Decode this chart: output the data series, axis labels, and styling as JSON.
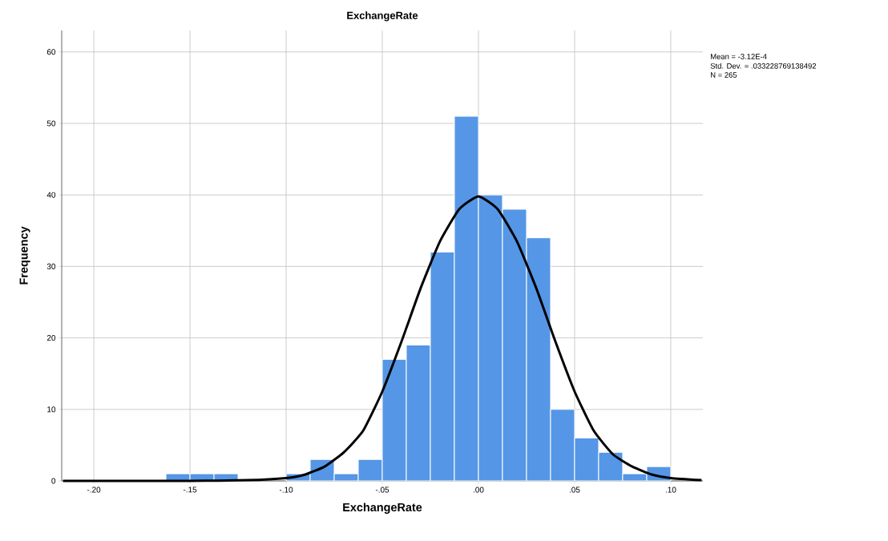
{
  "chart_data": {
    "type": "histogram",
    "title": "ExchangeRate",
    "xlabel": "ExchangeRate",
    "ylabel": "Frequency",
    "bins": [
      -0.1625,
      -0.15,
      -0.1375,
      -0.125,
      -0.1125,
      -0.1,
      -0.0875,
      -0.075,
      -0.0625,
      -0.05,
      -0.0375,
      -0.025,
      -0.0125,
      0,
      0.0125,
      0.025,
      0.0375,
      0.05,
      0.0625,
      0.075,
      0.0875,
      0.1
    ],
    "values": [
      1,
      1,
      1,
      0,
      0,
      1,
      3,
      1,
      3,
      17,
      19,
      32,
      51,
      40,
      38,
      34,
      10,
      6,
      4,
      1,
      2
    ],
    "color": "#5596e6",
    "series": [
      {
        "type": "line",
        "color": "#000000",
        "x": [
          -0.216,
          -0.18,
          -0.15,
          -0.12,
          -0.1,
          -0.09,
          -0.08,
          -0.07,
          -0.06,
          -0.05,
          -0.04,
          -0.03,
          -0.02,
          -0.01,
          0,
          0.01,
          0.02,
          0.03,
          0.04,
          0.05,
          0.06,
          0.07,
          0.08,
          0.09,
          0.1,
          0.116
        ],
        "values": [
          0,
          0,
          0,
          0.1,
          0.4,
          0.9,
          2,
          4,
          7,
          12.5,
          19.5,
          27,
          33.5,
          38,
          39.8,
          38,
          33.5,
          27,
          19.5,
          12.5,
          7,
          3.7,
          2,
          0.9,
          0.4,
          0.1
        ]
      }
    ],
    "xlim": [
      -0.2167,
      0.1167
    ],
    "ylim": [
      0,
      63
    ],
    "xticks": [
      {
        "value": -0.2,
        "label": "-.20"
      },
      {
        "value": -0.15,
        "label": "-.15"
      },
      {
        "value": -0.1,
        "label": "-.10"
      },
      {
        "value": -0.05,
        "label": "-.05"
      },
      {
        "value": 0,
        "label": ".00"
      },
      {
        "value": 0.05,
        "label": ".05"
      },
      {
        "value": 0.1,
        "label": ".10"
      }
    ],
    "yticks": [
      0,
      10,
      20,
      30,
      40,
      50,
      60
    ],
    "grid": true,
    "annotations": [
      "Mean = -3.12E-4",
      "Std. Dev. = .033228769138492",
      "N = 265"
    ]
  }
}
